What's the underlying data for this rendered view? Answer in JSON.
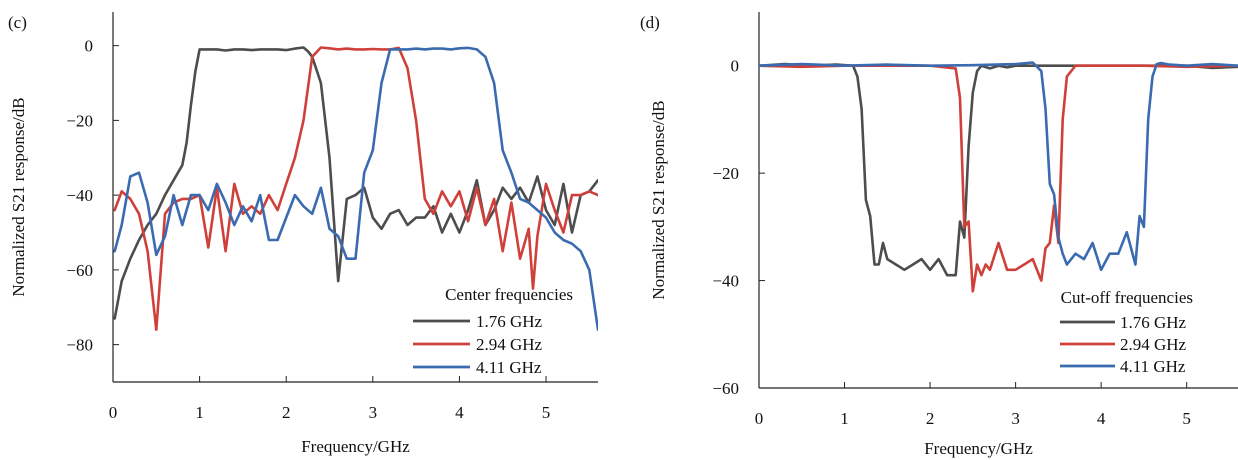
{
  "chart_data": [
    {
      "type": "line",
      "panel_label": "(c)",
      "xlabel": "Frequency/GHz",
      "ylabel": "Normalized S21 response/dB",
      "xlim": [
        0,
        5.6
      ],
      "ylim": [
        -90,
        9
      ],
      "xticks": [
        0,
        1,
        2,
        3,
        4,
        5
      ],
      "yticks": [
        0,
        -20,
        -40,
        -60,
        -80
      ],
      "tick_labels_x": [
        "0",
        "1",
        "2",
        "3",
        "4",
        "5"
      ],
      "tick_labels_y": [
        "0",
        "−20",
        "−40",
        "−60",
        "−80"
      ],
      "grid": false,
      "legend_title": "Center frequencies",
      "legend_position": "bottom-right",
      "series": [
        {
          "name": "1.76 GHz",
          "color": "#4d4d4d",
          "x": [
            0.02,
            0.1,
            0.2,
            0.3,
            0.4,
            0.5,
            0.6,
            0.7,
            0.8,
            0.85,
            0.9,
            0.95,
            1.0,
            1.1,
            1.2,
            1.3,
            1.4,
            1.5,
            1.6,
            1.7,
            1.8,
            1.9,
            2.0,
            2.1,
            2.2,
            2.25,
            2.3,
            2.4,
            2.5,
            2.6,
            2.7,
            2.8,
            2.9,
            3.0,
            3.1,
            3.2,
            3.3,
            3.4,
            3.5,
            3.6,
            3.7,
            3.8,
            3.9,
            4.0,
            4.1,
            4.2,
            4.3,
            4.4,
            4.5,
            4.6,
            4.7,
            4.8,
            4.9,
            5.0,
            5.1,
            5.2,
            5.3,
            5.4,
            5.5,
            5.6
          ],
          "y": [
            -73,
            -63,
            -57,
            -52,
            -48,
            -45,
            -40,
            -36,
            -32,
            -26,
            -16,
            -7,
            -1,
            -1,
            -1,
            -1.3,
            -1,
            -1,
            -1.2,
            -1,
            -1,
            -1,
            -1.2,
            -0.8,
            -0.5,
            -1.5,
            -3,
            -10,
            -30,
            -63,
            -41,
            -40,
            -38,
            -46,
            -49,
            -45,
            -44,
            -48,
            -46,
            -46,
            -43,
            -50,
            -45,
            -50,
            -44,
            -36,
            -48,
            -44,
            -38,
            -41,
            -38,
            -42,
            -35,
            -44,
            -48,
            -37,
            -50,
            -40,
            -39,
            -36
          ]
        },
        {
          "name": "2.94 GHz",
          "color": "#d0403a",
          "x": [
            0.02,
            0.1,
            0.2,
            0.3,
            0.4,
            0.5,
            0.6,
            0.7,
            0.8,
            0.9,
            1.0,
            1.1,
            1.2,
            1.3,
            1.4,
            1.5,
            1.6,
            1.7,
            1.8,
            1.9,
            2.0,
            2.1,
            2.2,
            2.3,
            2.4,
            2.5,
            2.6,
            2.7,
            2.8,
            2.9,
            3.0,
            3.1,
            3.2,
            3.3,
            3.4,
            3.5,
            3.6,
            3.7,
            3.8,
            3.9,
            4.0,
            4.1,
            4.2,
            4.3,
            4.4,
            4.5,
            4.6,
            4.7,
            4.8,
            4.85,
            4.9,
            5.0,
            5.1,
            5.2,
            5.3,
            5.4,
            5.5,
            5.6
          ],
          "y": [
            -44,
            -39,
            -41,
            -45,
            -55,
            -76,
            -45,
            -42,
            -41,
            -41,
            -40,
            -54,
            -38,
            -55,
            -37,
            -45,
            -43,
            -45,
            -40,
            -44,
            -37,
            -30,
            -20,
            -3,
            -0.5,
            -0.7,
            -1,
            -0.8,
            -1,
            -1,
            -0.9,
            -1,
            -1,
            -0.6,
            -6,
            -20,
            -41,
            -45,
            -39,
            -43,
            -39,
            -47,
            -38,
            -48,
            -41,
            -55,
            -42,
            -57,
            -49,
            -65,
            -51,
            -37,
            -44,
            -50,
            -40,
            -40,
            -39,
            -40
          ]
        },
        {
          "name": "4.11 GHz",
          "color": "#3a6bb0",
          "x": [
            0.02,
            0.1,
            0.2,
            0.3,
            0.4,
            0.5,
            0.6,
            0.7,
            0.8,
            0.9,
            1.0,
            1.1,
            1.2,
            1.3,
            1.4,
            1.5,
            1.6,
            1.7,
            1.8,
            1.9,
            2.0,
            2.1,
            2.2,
            2.3,
            2.4,
            2.5,
            2.6,
            2.7,
            2.8,
            2.9,
            3.0,
            3.1,
            3.2,
            3.3,
            3.4,
            3.5,
            3.6,
            3.7,
            3.8,
            3.9,
            4.0,
            4.1,
            4.2,
            4.3,
            4.4,
            4.5,
            4.6,
            4.7,
            4.8,
            4.9,
            5.0,
            5.1,
            5.2,
            5.3,
            5.4,
            5.5,
            5.6
          ],
          "y": [
            -55,
            -48,
            -35,
            -34,
            -42,
            -56,
            -51,
            -40,
            -48,
            -40,
            -40,
            -44,
            -37,
            -42,
            -48,
            -43,
            -47,
            -40,
            -52,
            -52,
            -46,
            -40,
            -43,
            -45,
            -38,
            -49,
            -51,
            -57,
            -57,
            -34,
            -28,
            -10,
            -1,
            -1,
            -1,
            -0.8,
            -1,
            -0.8,
            -0.8,
            -1,
            -0.7,
            -0.6,
            -1,
            -3,
            -10,
            -28,
            -34,
            -41,
            -42,
            -44,
            -46,
            -50,
            -52,
            -53,
            -55,
            -60,
            -76
          ]
        }
      ]
    },
    {
      "type": "line",
      "panel_label": "(d)",
      "xlabel": "Frequency/GHz",
      "ylabel": "Normalized S21 response/dB",
      "xlim": [
        0,
        5.6
      ],
      "ylim": [
        -60,
        10
      ],
      "xticks": [
        0,
        1,
        2,
        3,
        4,
        5
      ],
      "yticks": [
        0,
        -20,
        -40,
        -60
      ],
      "tick_labels_x": [
        "0",
        "1",
        "2",
        "3",
        "4",
        "5"
      ],
      "tick_labels_y": [
        "0",
        "−20",
        "−40",
        "−60"
      ],
      "grid": false,
      "legend_title": "Cut-off frequencies",
      "legend_position": "bottom-right",
      "series": [
        {
          "name": "1.76 GHz",
          "color": "#4d4d4d",
          "x": [
            0.0,
            0.3,
            0.6,
            0.9,
            1.1,
            1.15,
            1.2,
            1.25,
            1.3,
            1.35,
            1.4,
            1.45,
            1.5,
            1.6,
            1.7,
            1.8,
            1.9,
            2.0,
            2.1,
            2.2,
            2.3,
            2.35,
            2.4,
            2.45,
            2.5,
            2.55,
            2.6,
            2.7,
            2.8,
            2.9,
            3.0,
            3.2,
            3.5,
            4.0,
            4.5,
            5.0,
            5.3,
            5.6
          ],
          "y": [
            0,
            0.3,
            0,
            0.2,
            0,
            -2,
            -8,
            -25,
            -28,
            -37,
            -37,
            -33,
            -36,
            -37,
            -38,
            -37,
            -36,
            -38,
            -36,
            -39,
            -39,
            -29,
            -32,
            -15,
            -5,
            -1,
            0,
            -0.5,
            0,
            -0.3,
            0,
            0,
            0,
            0,
            0,
            0,
            -0.4,
            -0.2
          ]
        },
        {
          "name": "2.94 GHz",
          "color": "#d0403a",
          "x": [
            0.0,
            0.5,
            1.0,
            1.5,
            2.0,
            2.3,
            2.35,
            2.4,
            2.45,
            2.5,
            2.55,
            2.6,
            2.65,
            2.7,
            2.8,
            2.9,
            3.0,
            3.1,
            3.2,
            3.3,
            3.35,
            3.4,
            3.45,
            3.5,
            3.55,
            3.6,
            3.7,
            3.8,
            4.0,
            4.5,
            5.0,
            5.6
          ],
          "y": [
            0,
            -0.2,
            0,
            0,
            0,
            -0.5,
            -6,
            -30,
            -29,
            -42,
            -37,
            -39,
            -37,
            -38,
            -33,
            -38,
            -38,
            -37,
            -36,
            -40,
            -34,
            -33,
            -26,
            -33,
            -10,
            -2,
            0,
            0,
            0,
            0,
            -0.2,
            0
          ]
        },
        {
          "name": "4.11 GHz",
          "color": "#3a6bb0",
          "x": [
            0.0,
            0.5,
            1.0,
            1.5,
            2.0,
            2.5,
            3.0,
            3.2,
            3.3,
            3.35,
            3.4,
            3.45,
            3.5,
            3.55,
            3.6,
            3.7,
            3.8,
            3.9,
            4.0,
            4.1,
            4.2,
            4.3,
            4.4,
            4.45,
            4.5,
            4.55,
            4.6,
            4.65,
            4.7,
            4.8,
            5.0,
            5.3,
            5.6
          ],
          "y": [
            0,
            0.3,
            0,
            0.2,
            0,
            0.1,
            0.3,
            0.6,
            -1,
            -8,
            -22,
            -24,
            -32,
            -35,
            -37,
            -35,
            -36,
            -33,
            -38,
            -35,
            -35,
            -31,
            -37,
            -28,
            -30,
            -10,
            -2,
            0.3,
            0.5,
            0.2,
            0,
            0.3,
            0
          ]
        }
      ]
    }
  ]
}
